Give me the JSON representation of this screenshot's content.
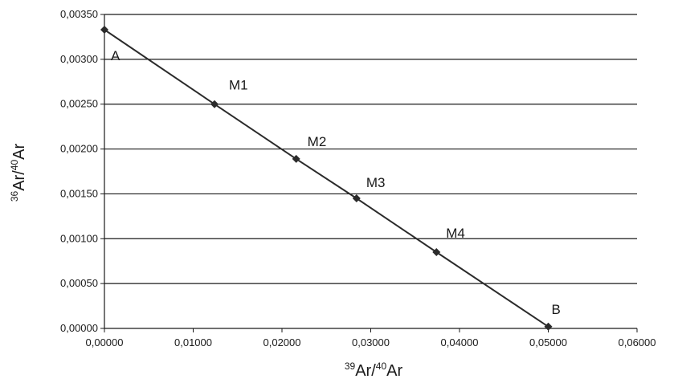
{
  "chart_data": {
    "type": "line",
    "title": "",
    "xlabel": {
      "sup1": "39",
      "base1": "Ar/",
      "sup2": "40",
      "base2": "Ar"
    },
    "ylabel": {
      "sup1": "36",
      "base1": "Ar/",
      "sup2": "40",
      "base2": "Ar"
    },
    "xlim": [
      0,
      0.06
    ],
    "ylim": [
      0,
      0.0035
    ],
    "x_ticks": [
      "0,00000",
      "0,01000",
      "0,02000",
      "0,03000",
      "0,04000",
      "0,05000",
      "0,06000"
    ],
    "y_ticks": [
      "0,00000",
      "0,00050",
      "0,00100",
      "0,00150",
      "0,00200",
      "0,00250",
      "0,00300",
      "0,00350"
    ],
    "grid": "horizontal",
    "legend": "none",
    "line_color": "#2b2b2b",
    "grid_color": "#1a1a1a",
    "series": [
      {
        "points": [
          {
            "label": "A",
            "x": 0.0,
            "y": 0.00333
          },
          {
            "label": "M1",
            "x": 0.0124,
            "y": 0.0025
          },
          {
            "label": "M2",
            "x": 0.0216,
            "y": 0.00189
          },
          {
            "label": "M3",
            "x": 0.0284,
            "y": 0.00145
          },
          {
            "label": "M4",
            "x": 0.0374,
            "y": 0.00085
          },
          {
            "label": "B",
            "x": 0.05,
            "y": 2e-05
          }
        ]
      }
    ]
  }
}
